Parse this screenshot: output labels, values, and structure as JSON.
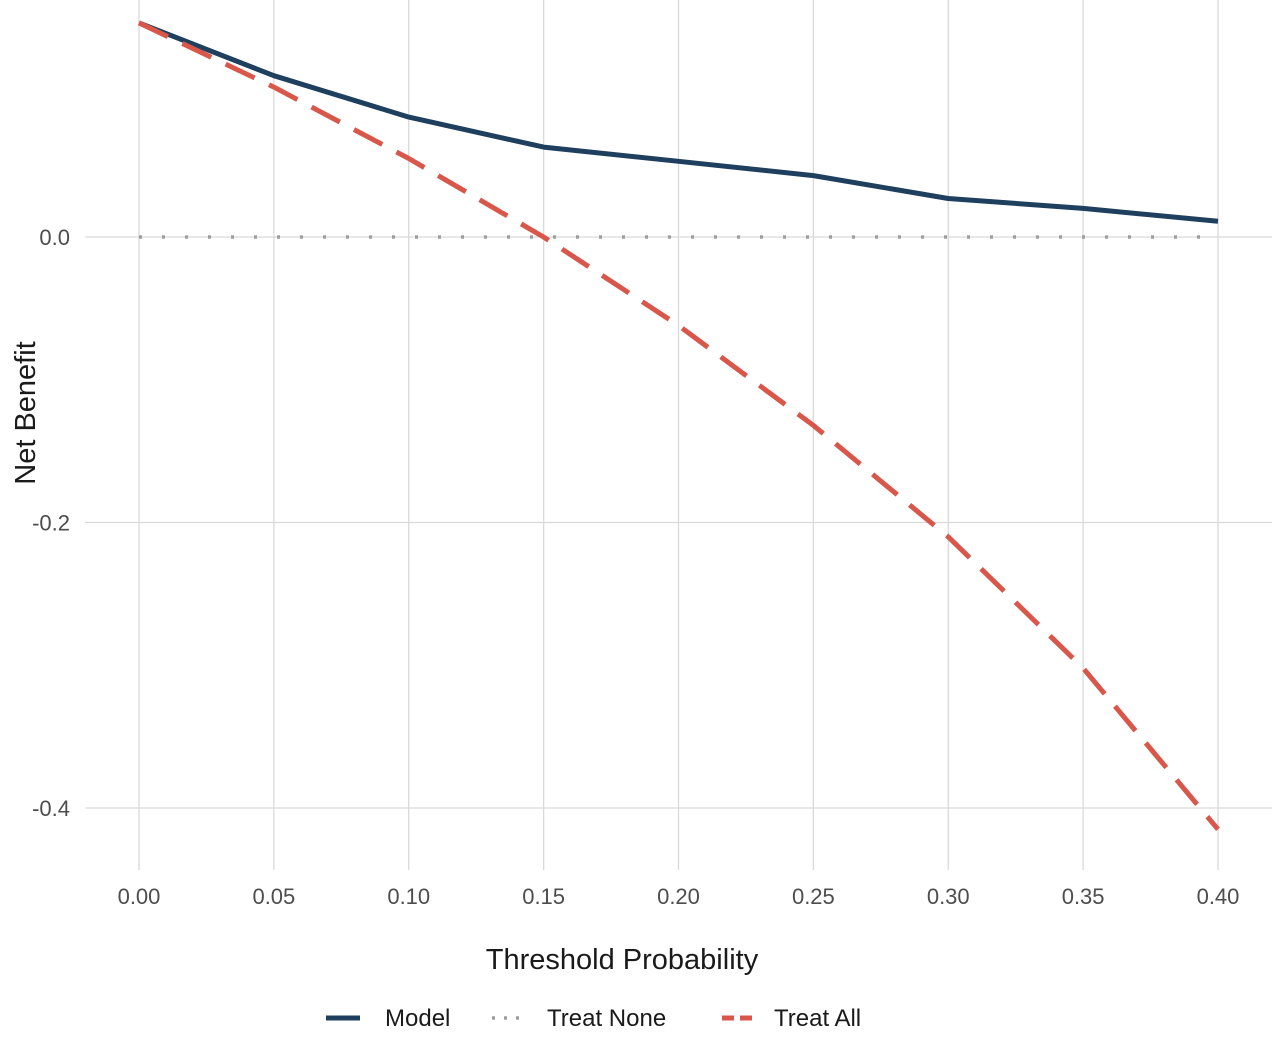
{
  "chart_data": {
    "type": "line",
    "title": "",
    "xlabel": "Threshold Probability",
    "ylabel": "Net Benefit",
    "xlim": [
      0.0,
      0.4
    ],
    "ylim": [
      -0.445,
      0.152
    ],
    "x_ticks": [
      0.0,
      0.05,
      0.1,
      0.15,
      0.2,
      0.25,
      0.3,
      0.35,
      0.4
    ],
    "x_tick_labels": [
      "0.00",
      "0.05",
      "0.10",
      "0.15",
      "0.20",
      "0.25",
      "0.30",
      "0.35",
      "0.40"
    ],
    "y_ticks": [
      0.0,
      -0.2,
      -0.4
    ],
    "y_tick_labels": [
      "0.0",
      "-0.2",
      "-0.4"
    ],
    "grid": true,
    "legend_position": "bottom",
    "series": [
      {
        "name": "Model",
        "color": "#1f3f5e",
        "style": "solid",
        "x": [
          0.0,
          0.05,
          0.1,
          0.15,
          0.2,
          0.25,
          0.3,
          0.35,
          0.4
        ],
        "y": [
          0.15,
          0.113,
          0.084,
          0.063,
          0.053,
          0.043,
          0.027,
          0.02,
          0.011
        ]
      },
      {
        "name": "Treat None",
        "color": "#9e9e9e",
        "style": "dotted",
        "x": [
          0.0,
          0.05,
          0.1,
          0.15,
          0.2,
          0.25,
          0.3,
          0.35,
          0.4
        ],
        "y": [
          0.0,
          0.0,
          0.0,
          0.0,
          0.0,
          0.0,
          0.0,
          0.0,
          0.0
        ]
      },
      {
        "name": "Treat All",
        "color": "#d9574a",
        "style": "dashed",
        "x": [
          0.0,
          0.05,
          0.1,
          0.15,
          0.2,
          0.25,
          0.3,
          0.35,
          0.4
        ],
        "y": [
          0.15,
          0.105,
          0.055,
          0.0,
          -0.062,
          -0.132,
          -0.21,
          -0.302,
          -0.415
        ]
      }
    ]
  }
}
